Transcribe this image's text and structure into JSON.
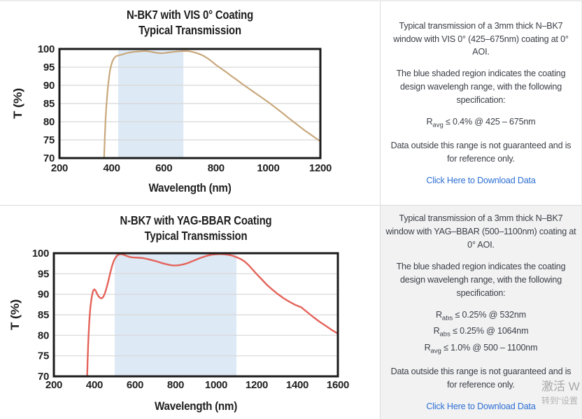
{
  "colors": {
    "link": "#2d6fd3",
    "panel_alt_bg": "#f2f2f3",
    "divider": "#dcdcdc",
    "chart_frame": "#1b1b1b",
    "grid_line": "#d8d8d8",
    "vis_curve": "#c9a87c",
    "yag_curve": "#e4635a",
    "shaded_region": "#dde9f5"
  },
  "watermark": {
    "line1": "激活 W",
    "line2": "转到“设置"
  },
  "panels": [
    {
      "chart_title_line1": "N-BK7 with VIS 0° Coating",
      "chart_title_line2": "Typical Transmission",
      "description": "Typical transmission of a 3mm thick N–BK7 window with VIS 0° (425–675nm) coating at 0° AOI.",
      "shaded_note": "The blue shaded region indicates the coating design wavelengh range, with the following specification:",
      "specs": [
        {
          "sym": "R",
          "sub": "avg",
          "rest": " ≤ 0.4% @ 425 – 675nm"
        }
      ],
      "disclaimer": "Data outside this range is not guaranteed and is for reference only.",
      "link_label": "Click Here to Download Data"
    },
    {
      "chart_title_line1": "N-BK7 with YAG-BBAR Coating",
      "chart_title_line2": "Typical Transmission",
      "description": "Typical transmission of a 3mm thick N–BK7 window with YAG–BBAR (500–1100nm) coating at 0° AOI.",
      "shaded_note": "The blue shaded region indicates the coating design wavelengh range, with the following specification:",
      "specs": [
        {
          "sym": "R",
          "sub": "abs",
          "rest": " ≤ 0.25% @ 532nm"
        },
        {
          "sym": "R",
          "sub": "abs",
          "rest": " ≤ 0.25% @ 1064nm"
        },
        {
          "sym": "R",
          "sub": "avg",
          "rest": " ≤ 1.0% @ 500 – 1100nm"
        }
      ],
      "disclaimer": "Data outside this range is not guaranteed and is for reference only.",
      "link_label": "Click Here to Download Data"
    }
  ],
  "chart_data": [
    {
      "type": "line",
      "title": "N-BK7 with VIS 0° Coating — Typical Transmission",
      "xlabel": "Wavelength (nm)",
      "ylabel": "T (%)",
      "xlim": [
        200,
        1200
      ],
      "ylim": [
        70,
        100
      ],
      "xticks": [
        200,
        400,
        600,
        800,
        1000,
        1200
      ],
      "yticks": [
        70,
        75,
        80,
        85,
        90,
        95,
        100
      ],
      "grid": "horizontal-only",
      "grid_color": "#d8d8d8",
      "shaded_region": {
        "x0": 425,
        "x1": 675,
        "color": "#dde9f5",
        "label": "coating design wavelength range"
      },
      "series": [
        {
          "name": "Transmission (%)",
          "color": "#c9a87c",
          "points": [
            [
              368,
              62
            ],
            [
              371,
              70
            ],
            [
              374,
              76
            ],
            [
              377,
              81
            ],
            [
              380,
              84.5
            ],
            [
              384,
              88
            ],
            [
              388,
              91
            ],
            [
              393,
              93.8
            ],
            [
              398,
              95.5
            ],
            [
              404,
              96.8
            ],
            [
              410,
              97.5
            ],
            [
              417,
              98
            ],
            [
              424,
              98.2
            ],
            [
              432,
              98.3
            ],
            [
              442,
              98.5
            ],
            [
              455,
              98.8
            ],
            [
              470,
              99.05
            ],
            [
              485,
              99.2
            ],
            [
              500,
              99.3
            ],
            [
              515,
              99.4
            ],
            [
              530,
              99.45
            ],
            [
              545,
              99.3
            ],
            [
              560,
              99.1
            ],
            [
              575,
              98.9
            ],
            [
              590,
              98.8
            ],
            [
              605,
              98.9
            ],
            [
              620,
              99.05
            ],
            [
              635,
              99.2
            ],
            [
              650,
              99.3
            ],
            [
              665,
              99.4
            ],
            [
              680,
              99.45
            ],
            [
              695,
              99.4
            ],
            [
              710,
              99.2
            ],
            [
              725,
              98.9
            ],
            [
              740,
              98.5
            ],
            [
              755,
              98
            ],
            [
              770,
              97.3
            ],
            [
              785,
              96.5
            ],
            [
              800,
              95.6
            ],
            [
              820,
              94.6
            ],
            [
              840,
              93.6
            ],
            [
              860,
              92.5
            ],
            [
              880,
              91.5
            ],
            [
              900,
              90.4
            ],
            [
              920,
              89.4
            ],
            [
              940,
              88.4
            ],
            [
              960,
              87.4
            ],
            [
              980,
              86.4
            ],
            [
              1000,
              85.4
            ],
            [
              1020,
              84.3
            ],
            [
              1040,
              83.2
            ],
            [
              1060,
              82.1
            ],
            [
              1080,
              80.9
            ],
            [
              1100,
              79.8
            ],
            [
              1120,
              78.7
            ],
            [
              1140,
              77.6
            ],
            [
              1160,
              76.6
            ],
            [
              1180,
              75.6
            ],
            [
              1200,
              74.6
            ]
          ]
        }
      ]
    },
    {
      "type": "line",
      "title": "N-BK7 with YAG-BBAR Coating — Typical Transmission",
      "xlabel": "Wavelength (nm)",
      "ylabel": "T (%)",
      "xlim": [
        200,
        1600
      ],
      "ylim": [
        70,
        100
      ],
      "xticks": [
        200,
        400,
        600,
        800,
        1000,
        1200,
        1400,
        1600
      ],
      "yticks": [
        70,
        75,
        80,
        85,
        90,
        95,
        100
      ],
      "grid": "horizontal-only",
      "grid_color": "#d8d8d8",
      "shaded_region": {
        "x0": 500,
        "x1": 1100,
        "color": "#dde9f5",
        "label": "coating design wavelength range"
      },
      "series": [
        {
          "name": "Transmission (%)",
          "color": "#e4635a",
          "points": [
            [
              360,
              62
            ],
            [
              363,
              68
            ],
            [
              366,
              73
            ],
            [
              369,
              77.5
            ],
            [
              372,
              81
            ],
            [
              376,
              84.3
            ],
            [
              380,
              86.8
            ],
            [
              385,
              88.8
            ],
            [
              390,
              90.2
            ],
            [
              395,
              91
            ],
            [
              400,
              91.2
            ],
            [
              406,
              90.9
            ],
            [
              413,
              90.1
            ],
            [
              420,
              89.5
            ],
            [
              428,
              89.1
            ],
            [
              436,
              89
            ],
            [
              444,
              89.4
            ],
            [
              452,
              90.3
            ],
            [
              460,
              91.6
            ],
            [
              469,
              93.3
            ],
            [
              478,
              95.2
            ],
            [
              487,
              96.9
            ],
            [
              496,
              98.2
            ],
            [
              505,
              99
            ],
            [
              514,
              99.5
            ],
            [
              523,
              99.75
            ],
            [
              532,
              99.8
            ],
            [
              545,
              99.6
            ],
            [
              558,
              99.35
            ],
            [
              572,
              99.1
            ],
            [
              586,
              99
            ],
            [
              600,
              98.95
            ],
            [
              620,
              98.9
            ],
            [
              640,
              98.8
            ],
            [
              660,
              98.6
            ],
            [
              680,
              98.35
            ],
            [
              700,
              98.1
            ],
            [
              720,
              97.8
            ],
            [
              740,
              97.5
            ],
            [
              760,
              97.25
            ],
            [
              780,
              97.05
            ],
            [
              800,
              97
            ],
            [
              820,
              97.1
            ],
            [
              840,
              97.3
            ],
            [
              860,
              97.6
            ],
            [
              880,
              98
            ],
            [
              900,
              98.4
            ],
            [
              920,
              98.8
            ],
            [
              940,
              99.15
            ],
            [
              960,
              99.45
            ],
            [
              980,
              99.65
            ],
            [
              1000,
              99.75
            ],
            [
              1020,
              99.8
            ],
            [
              1040,
              99.75
            ],
            [
              1060,
              99.6
            ],
            [
              1080,
              99.4
            ],
            [
              1100,
              99.05
            ],
            [
              1120,
              98.6
            ],
            [
              1140,
              98
            ],
            [
              1160,
              97.1
            ],
            [
              1180,
              96
            ],
            [
              1200,
              94.9
            ],
            [
              1225,
              93.6
            ],
            [
              1250,
              92.3
            ],
            [
              1275,
              91.2
            ],
            [
              1300,
              90.2
            ],
            [
              1330,
              89.1
            ],
            [
              1360,
              88.2
            ],
            [
              1390,
              87.4
            ],
            [
              1420,
              86.8
            ],
            [
              1450,
              85.6
            ],
            [
              1480,
              84.4
            ],
            [
              1510,
              83.3
            ],
            [
              1540,
              82.3
            ],
            [
              1570,
              81.3
            ],
            [
              1600,
              80.4
            ]
          ]
        }
      ]
    }
  ]
}
